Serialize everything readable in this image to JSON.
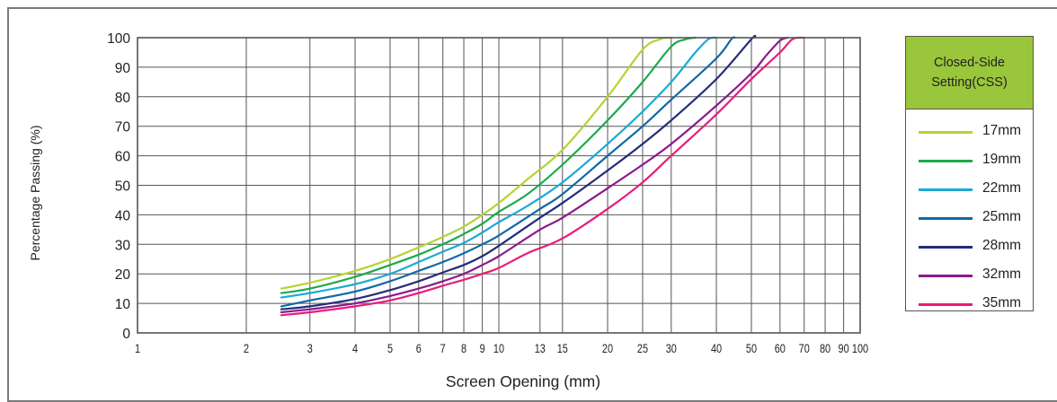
{
  "chart_data": {
    "type": "line",
    "title": "",
    "xlabel": "Screen Opening (mm)",
    "ylabel": "Percentage Passing (%)",
    "xscale": "log",
    "xlim": [
      1,
      100
    ],
    "ylim": [
      0,
      100
    ],
    "grid": true,
    "x_ticks": [
      1,
      2,
      3,
      4,
      5,
      6,
      7,
      8,
      9,
      10,
      13,
      15,
      20,
      25,
      30,
      40,
      50,
      60,
      70,
      80,
      90,
      100
    ],
    "y_ticks": [
      0,
      10,
      20,
      30,
      40,
      50,
      60,
      70,
      80,
      90,
      100
    ],
    "legend_title": "Closed-Side Setting(CSS)",
    "legend_position": "right",
    "series": [
      {
        "name": "17mm",
        "color": "#b5d334",
        "points": [
          [
            2.5,
            15
          ],
          [
            3,
            17
          ],
          [
            4,
            21
          ],
          [
            5,
            25
          ],
          [
            6,
            29
          ],
          [
            7,
            32.5
          ],
          [
            8,
            36
          ],
          [
            9,
            40
          ],
          [
            10,
            44
          ],
          [
            12,
            52
          ],
          [
            15,
            62
          ],
          [
            20,
            80
          ],
          [
            25,
            96
          ],
          [
            28,
            99.5
          ],
          [
            30,
            100
          ]
        ]
      },
      {
        "name": "19mm",
        "color": "#1aaa4b",
        "points": [
          [
            2.5,
            13.5
          ],
          [
            3,
            15
          ],
          [
            4,
            19
          ],
          [
            5,
            23
          ],
          [
            6,
            26.5
          ],
          [
            7,
            30
          ],
          [
            8,
            33.5
          ],
          [
            9,
            37
          ],
          [
            10,
            41
          ],
          [
            12,
            47
          ],
          [
            15,
            57
          ],
          [
            20,
            72
          ],
          [
            25,
            85
          ],
          [
            30,
            97
          ],
          [
            33,
            99.5
          ],
          [
            35,
            100
          ]
        ]
      },
      {
        "name": "22mm",
        "color": "#1aa9d8",
        "points": [
          [
            2.5,
            12
          ],
          [
            3,
            13.5
          ],
          [
            4,
            16.5
          ],
          [
            5,
            20
          ],
          [
            6,
            24
          ],
          [
            7,
            27.5
          ],
          [
            8,
            30.5
          ],
          [
            9,
            34
          ],
          [
            10,
            37.5
          ],
          [
            12,
            43
          ],
          [
            15,
            51
          ],
          [
            20,
            64
          ],
          [
            25,
            75
          ],
          [
            30,
            85
          ],
          [
            35,
            95
          ],
          [
            38,
            99.5
          ],
          [
            40,
            100
          ]
        ]
      },
      {
        "name": "25mm",
        "color": "#1268a8",
        "points": [
          [
            2.5,
            9
          ],
          [
            3,
            11
          ],
          [
            4,
            14
          ],
          [
            5,
            17.5
          ],
          [
            6,
            21
          ],
          [
            7,
            24
          ],
          [
            8,
            27
          ],
          [
            9,
            30
          ],
          [
            10,
            33
          ],
          [
            13,
            42
          ],
          [
            15,
            47
          ],
          [
            20,
            60
          ],
          [
            25,
            70
          ],
          [
            30,
            79
          ],
          [
            40,
            93
          ],
          [
            44,
            99.5
          ],
          [
            45,
            100
          ]
        ]
      },
      {
        "name": "28mm",
        "color": "#242c7a",
        "points": [
          [
            2.5,
            8
          ],
          [
            3,
            9
          ],
          [
            4,
            11.5
          ],
          [
            5,
            14.5
          ],
          [
            6,
            17.5
          ],
          [
            7,
            20.5
          ],
          [
            8,
            23
          ],
          [
            9,
            26
          ],
          [
            10,
            29.5
          ],
          [
            13,
            39
          ],
          [
            15,
            44
          ],
          [
            20,
            55
          ],
          [
            25,
            64
          ],
          [
            30,
            72
          ],
          [
            40,
            86
          ],
          [
            50,
            99.5
          ],
          [
            51,
            100
          ]
        ]
      },
      {
        "name": "32mm",
        "color": "#8a1a8c",
        "points": [
          [
            2.5,
            7
          ],
          [
            3,
            8
          ],
          [
            4,
            10
          ],
          [
            5,
            12.5
          ],
          [
            6,
            15
          ],
          [
            7,
            17.5
          ],
          [
            8,
            20
          ],
          [
            9,
            23
          ],
          [
            10,
            26
          ],
          [
            13,
            35
          ],
          [
            15,
            39
          ],
          [
            20,
            49
          ],
          [
            25,
            57
          ],
          [
            30,
            64
          ],
          [
            40,
            77
          ],
          [
            50,
            88
          ],
          [
            55,
            94
          ],
          [
            60,
            99
          ],
          [
            63,
            100
          ]
        ]
      },
      {
        "name": "35mm",
        "color": "#e81c7a",
        "points": [
          [
            2.5,
            6
          ],
          [
            3,
            7
          ],
          [
            4,
            9
          ],
          [
            5,
            11
          ],
          [
            6,
            13.5
          ],
          [
            7,
            16
          ],
          [
            8,
            18
          ],
          [
            9,
            20
          ],
          [
            10,
            22
          ],
          [
            12,
            27
          ],
          [
            15,
            32
          ],
          [
            20,
            42
          ],
          [
            25,
            51
          ],
          [
            30,
            60
          ],
          [
            40,
            74
          ],
          [
            50,
            86
          ],
          [
            60,
            95
          ],
          [
            65,
            99.5
          ],
          [
            70,
            100
          ]
        ]
      }
    ]
  }
}
